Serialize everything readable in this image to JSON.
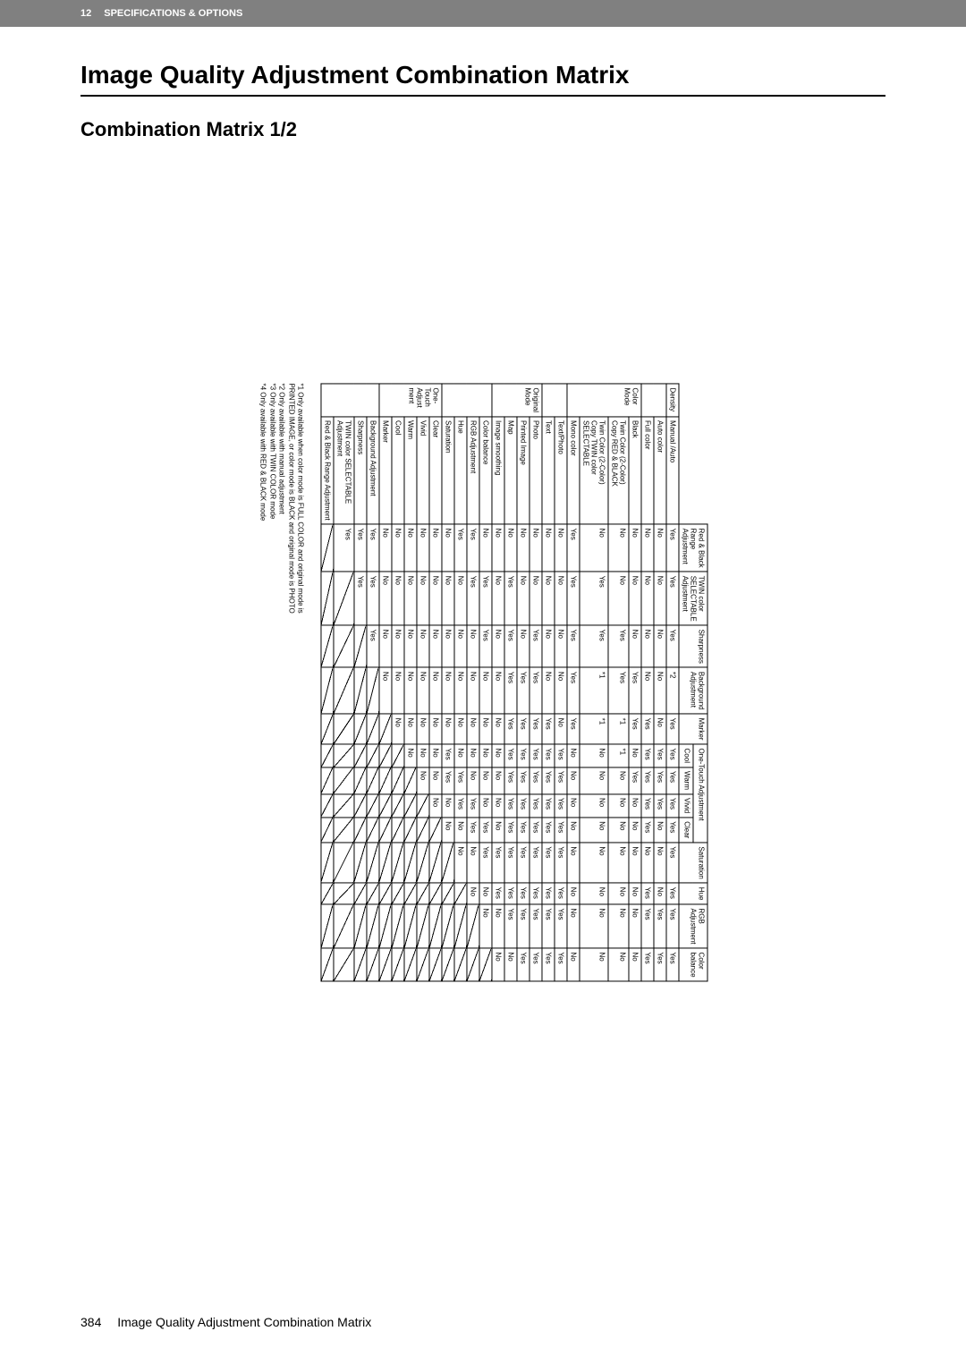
{
  "topbar": {
    "num": "12",
    "title": "SPECIFICATIONS & OPTIONS"
  },
  "h1": "Image Quality Adjustment Combination Matrix",
  "h2": "Combination Matrix 1/2",
  "footnotes": [
    "*1  Only available when color mode is FULL COLOR and original mode is",
    "     PRINTED IMAGE, or color mode is BLACK and original mode is PHOTO",
    "*2  Only available with manual adjustment",
    "*3  Only available with TWIN COLOR mode",
    "*4  Only available with RED & BLACK mode"
  ],
  "footer": {
    "page": "384",
    "title": "Image Quality Adjustment Combination Matrix"
  },
  "cols": [
    "Red & Black\nRange\nAdjustment",
    "TWIN color\nSELECTABLE\nAdjustment",
    "Sharpness",
    "Background\nAdjustment",
    "Marker",
    "Cool",
    "Warm",
    "Vivid",
    "Clear",
    "Saturation",
    "Hue",
    "RGB\nAdjustment",
    "Color\nbalance"
  ],
  "groupCols": {
    "span4": "One-Touch Adjustment"
  },
  "rowGroups": [
    {
      "label": "Density",
      "rows": [
        {
          "name": "Manual /Auto",
          "v": [
            "Yes",
            "Yes",
            "Yes",
            "*2",
            "Yes",
            "Yes",
            "Yes",
            "Yes",
            "Yes",
            "Yes",
            "Yes",
            "Yes",
            "Yes"
          ]
        }
      ]
    },
    {
      "label": "",
      "rows": [
        {
          "name": "Auto color",
          "v": [
            "No",
            "No",
            "No",
            "No",
            "No",
            "Yes",
            "Yes",
            "Yes",
            "No",
            "No",
            "No",
            "Yes",
            "Yes"
          ]
        },
        {
          "name": "Full color",
          "v": [
            "No",
            "No",
            "No",
            "No",
            "Yes",
            "Yes",
            "Yes",
            "Yes",
            "Yes",
            "No",
            "Yes",
            "Yes",
            "Yes"
          ]
        }
      ]
    },
    {
      "label": "Color\nMode",
      "rows": [
        {
          "name": "Black",
          "v": [
            "No",
            "No",
            "No",
            "Yes",
            "Yes",
            "No",
            "Yes",
            "No",
            "No",
            "No",
            "No",
            "No",
            "No"
          ]
        },
        {
          "name": "Twin Color (2-Color)\nCopy RED & BLACK",
          "v": [
            "No",
            "No",
            "Yes",
            "Yes",
            "*1",
            "*1",
            "No",
            "No",
            "No",
            "No",
            "No",
            "No",
            "No"
          ]
        },
        {
          "name": "Twin Color (2-Color)\nCopy TWIN color\nSELECTABLE",
          "v": [
            "No",
            "Yes",
            "Yes",
            "*1",
            "*1",
            "No",
            "No",
            "No",
            "No",
            "No",
            "No",
            "No",
            "No"
          ]
        },
        {
          "name": "Mono color",
          "v": [
            "Yes",
            "Yes",
            "Yes",
            "Yes",
            "Yes",
            "No",
            "No",
            "No",
            "No",
            "No",
            "No",
            "No",
            "No"
          ]
        }
      ]
    },
    {
      "label": "",
      "rows": [
        {
          "name": "Text/Photo",
          "v": [
            "No",
            "No",
            "No",
            "No",
            "No",
            "Yes",
            "Yes",
            "Yes",
            "Yes",
            "Yes",
            "Yes",
            "Yes",
            "Yes"
          ]
        },
        {
          "name": "Text",
          "v": [
            "No",
            "No",
            "No",
            "No",
            "Yes",
            "Yes",
            "Yes",
            "Yes",
            "Yes",
            "Yes",
            "Yes",
            "Yes",
            "Yes"
          ]
        }
      ]
    },
    {
      "label": "Original\nMode",
      "rows": [
        {
          "name": "Photo",
          "v": [
            "No",
            "No",
            "Yes",
            "Yes",
            "Yes",
            "Yes",
            "Yes",
            "Yes",
            "Yes",
            "Yes",
            "Yes",
            "Yes",
            "Yes"
          ]
        },
        {
          "name": "Printed Image",
          "v": [
            "No",
            "No",
            "No",
            "Yes",
            "Yes",
            "Yes",
            "Yes",
            "Yes",
            "Yes",
            "Yes",
            "Yes",
            "Yes",
            "Yes"
          ]
        },
        {
          "name": "Map",
          "v": [
            "No",
            "Yes",
            "Yes",
            "Yes",
            "Yes",
            "Yes",
            "Yes",
            "Yes",
            "Yes",
            "Yes",
            "Yes",
            "Yes",
            "No"
          ]
        },
        {
          "name": "Image smoothing",
          "v": [
            "No",
            "No",
            "No",
            "No",
            "No",
            "No",
            "No",
            "No",
            "No",
            "Yes",
            "Yes",
            "No",
            "No"
          ]
        }
      ]
    },
    {
      "label": "",
      "rows": [
        {
          "name": "Color balance",
          "v": [
            "No",
            "Yes",
            "Yes",
            "No",
            "No",
            "No",
            "No",
            "No",
            "Yes",
            "Yes",
            "No",
            "No",
            ""
          ],
          "diag": [
            12
          ]
        },
        {
          "name": "RGB Adjustment",
          "v": [
            "Yes",
            "Yes",
            "No",
            "No",
            "No",
            "No",
            "No",
            "Yes",
            "Yes",
            "No",
            "No",
            "",
            ""
          ],
          "diag": [
            11,
            12
          ]
        },
        {
          "name": "Hue",
          "v": [
            "Yes",
            "No",
            "No",
            "No",
            "No",
            "No",
            "Yes",
            "Yes",
            "No",
            "No",
            "",
            "",
            ""
          ],
          "diag": [
            10,
            11,
            12
          ]
        },
        {
          "name": "Saturation",
          "v": [
            "No",
            "No",
            "No",
            "No",
            "No",
            "Yes",
            "Yes",
            "No",
            "No",
            "",
            "",
            "",
            ""
          ],
          "diag": [
            9,
            10,
            11,
            12
          ]
        }
      ]
    },
    {
      "label": "One-\nTouch\nAdjust\nment",
      "rows": [
        {
          "name": "Clear",
          "v": [
            "No",
            "No",
            "No",
            "No",
            "No",
            "No",
            "No",
            "No",
            "",
            "",
            "",
            "",
            ""
          ],
          "diag": [
            8,
            9,
            10,
            11,
            12
          ]
        },
        {
          "name": "Vivid",
          "v": [
            "No",
            "No",
            "No",
            "No",
            "No",
            "No",
            "No",
            "",
            "",
            "",
            "",
            "",
            ""
          ],
          "diag": [
            7,
            8,
            9,
            10,
            11,
            12
          ]
        },
        {
          "name": "Warm",
          "v": [
            "No",
            "No",
            "No",
            "No",
            "No",
            "No",
            "",
            "",
            "",
            "",
            "",
            "",
            ""
          ],
          "diag": [
            6,
            7,
            8,
            9,
            10,
            11,
            12
          ]
        },
        {
          "name": "Cool",
          "v": [
            "No",
            "No",
            "No",
            "No",
            "No",
            "",
            "",
            "",
            "",
            "",
            "",
            "",
            ""
          ],
          "diag": [
            5,
            6,
            7,
            8,
            9,
            10,
            11,
            12
          ]
        },
        {
          "name": "Marker",
          "v": [
            "No",
            "No",
            "No",
            "No",
            "",
            "",
            "",
            "",
            "",
            "",
            "",
            "",
            ""
          ],
          "diag": [
            4,
            5,
            6,
            7,
            8,
            9,
            10,
            11,
            12
          ]
        }
      ]
    },
    {
      "label": "",
      "rows": [
        {
          "name": "Background Adjustment",
          "v": [
            "Yes",
            "Yes",
            "Yes",
            "",
            "",
            "",
            "",
            "",
            "",
            "",
            "",
            "",
            ""
          ],
          "diag": [
            3,
            4,
            5,
            6,
            7,
            8,
            9,
            10,
            11,
            12
          ]
        },
        {
          "name": "Sharpness",
          "v": [
            "Yes",
            "Yes",
            "",
            "",
            "",
            "",
            "",
            "",
            "",
            "",
            "",
            "",
            ""
          ],
          "diag": [
            2,
            3,
            4,
            5,
            6,
            7,
            8,
            9,
            10,
            11,
            12
          ]
        },
        {
          "name": "TWIN color SELECTABLE\nAdjustment",
          "v": [
            "Yes",
            "",
            "",
            "",
            "",
            "",
            "",
            "",
            "",
            "",
            "",
            "",
            ""
          ],
          "diag": [
            1,
            2,
            3,
            4,
            5,
            6,
            7,
            8,
            9,
            10,
            11,
            12
          ]
        },
        {
          "name": "Red & Black Range Adjustment",
          "v": [
            "",
            "",
            "",
            "",
            "",
            "",
            "",
            "",
            "",
            "",
            "",
            "",
            ""
          ],
          "diag": [
            0,
            1,
            2,
            3,
            4,
            5,
            6,
            7,
            8,
            9,
            10,
            11,
            12
          ]
        }
      ]
    }
  ]
}
